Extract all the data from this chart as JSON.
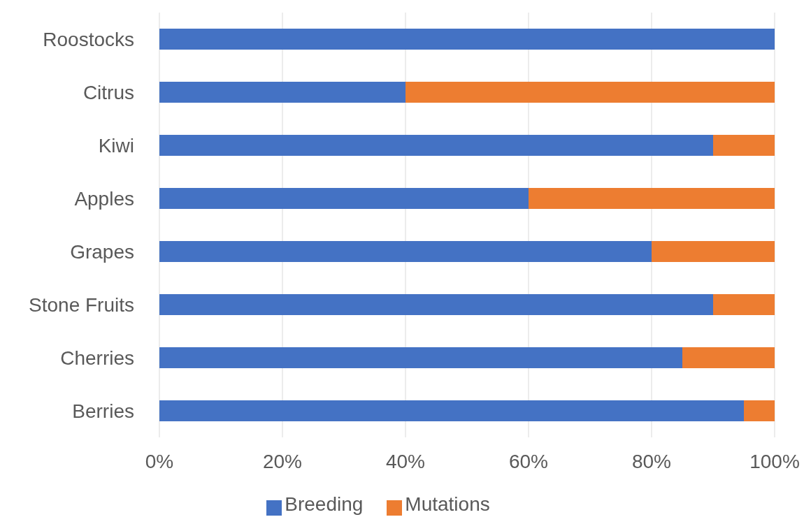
{
  "chart_data": {
    "type": "bar",
    "orientation": "horizontal",
    "stacked": true,
    "categories": [
      "Roostocks",
      "Citrus",
      "Kiwi",
      "Apples",
      "Grapes",
      "Stone Fruits",
      "Cherries",
      "Berries"
    ],
    "series": [
      {
        "name": "Breeding",
        "color": "#4472c4",
        "values": [
          100,
          40,
          90,
          60,
          80,
          90,
          85,
          95
        ]
      },
      {
        "name": "Mutations",
        "color": "#ed7d31",
        "values": [
          0,
          60,
          10,
          40,
          20,
          10,
          15,
          5
        ]
      }
    ],
    "xlim": [
      0,
      100
    ],
    "xticks": [
      {
        "value": 0,
        "label": "0%"
      },
      {
        "value": 20,
        "label": "20%"
      },
      {
        "value": 40,
        "label": "40%"
      },
      {
        "value": 60,
        "label": "60%"
      },
      {
        "value": 80,
        "label": "80%"
      },
      {
        "value": 100,
        "label": "100%"
      }
    ],
    "grid": "x",
    "legend": "bottom"
  }
}
